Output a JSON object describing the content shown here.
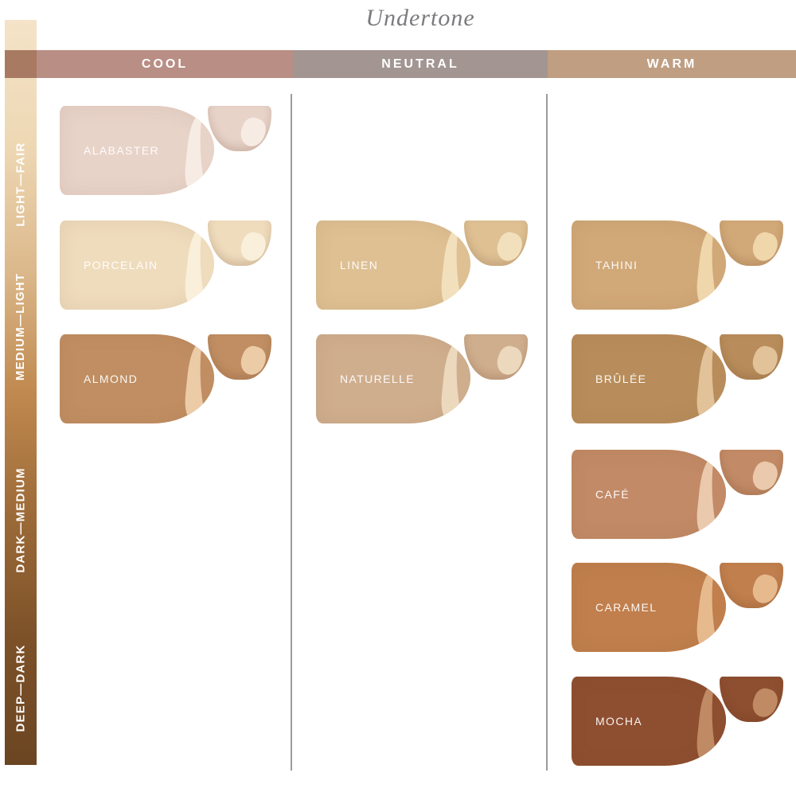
{
  "title": "Undertone",
  "depth_scale": {
    "items": [
      "LIGHT—FAIR",
      "MEDIUM—LIGHT",
      "DARK—MEDIUM",
      "DEEP—DARK"
    ],
    "gradient": [
      "#f4e3c8",
      "#eed8b4",
      "#dcb98c",
      "#c0894f",
      "#9c6a38",
      "#7c5128",
      "#6b4522"
    ],
    "band_overlap_color": "#a87a62"
  },
  "undertone_columns": [
    {
      "label": "COOL",
      "header_color": "#b98e85",
      "swatches": [
        {
          "label": "ALABASTER",
          "color": "#e8d3c9",
          "highlight": "#f7ece4",
          "row": 1
        },
        {
          "label": "PORCELAIN",
          "color": "#efdcbd",
          "highlight": "#f9efda",
          "row": 2
        },
        {
          "label": "ALMOND",
          "color": "#c08e62",
          "highlight": "#eccba7",
          "row": 3
        }
      ]
    },
    {
      "label": "NEUTRAL",
      "header_color": "#a29592",
      "swatches": [
        {
          "label": "LINEN",
          "color": "#dec093",
          "highlight": "#f2e0bd",
          "row": 2
        },
        {
          "label": "NATURELLE",
          "color": "#cfae8e",
          "highlight": "#ecd9bd",
          "row": 3
        }
      ]
    },
    {
      "label": "WARM",
      "header_color": "#bf9e82",
      "swatches": [
        {
          "label": "TAHINI",
          "color": "#d1a878",
          "highlight": "#efd6ab",
          "row": 2
        },
        {
          "label": "BRÛLÉE",
          "color": "#b88d5b",
          "highlight": "#e2c298",
          "row": 3
        },
        {
          "label": "CAFÉ",
          "color": "#c28a66",
          "highlight": "#eac9ac",
          "row": 4
        },
        {
          "label": "CARAMEL",
          "color": "#c07f4d",
          "highlight": "#e6ba8d",
          "row": 5
        },
        {
          "label": "MOCHA",
          "color": "#8e4e30",
          "highlight": "#bf8a64",
          "row": 6
        }
      ]
    }
  ]
}
